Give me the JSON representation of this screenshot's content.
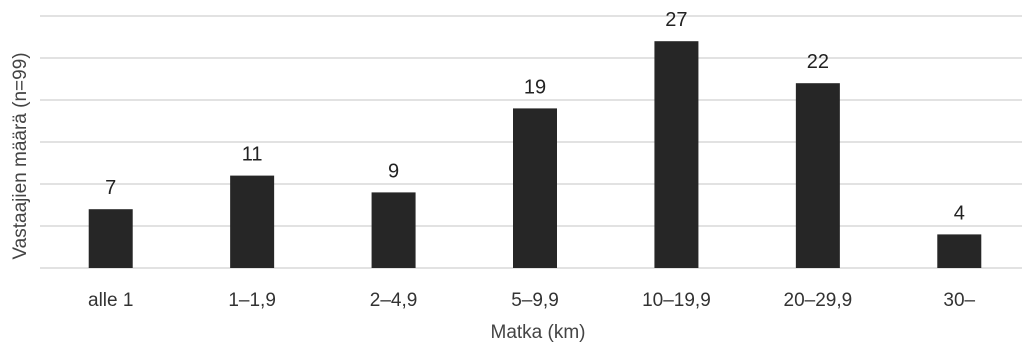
{
  "chart_data": {
    "type": "bar",
    "categories": [
      "alle 1",
      "1–1,9",
      "2–4,9",
      "5–9,9",
      "10–19,9",
      "20–29,9",
      "30–"
    ],
    "values": [
      7,
      11,
      9,
      19,
      27,
      22,
      4
    ],
    "xlabel": "Matka (km)",
    "ylabel": "Vastaajien määrä (n=99)",
    "ylim": [
      0,
      30
    ],
    "ytick_step": 5,
    "grid": true,
    "data_labels": true,
    "bar_color": "#262626",
    "grid_color": "#d9d9d9"
  }
}
